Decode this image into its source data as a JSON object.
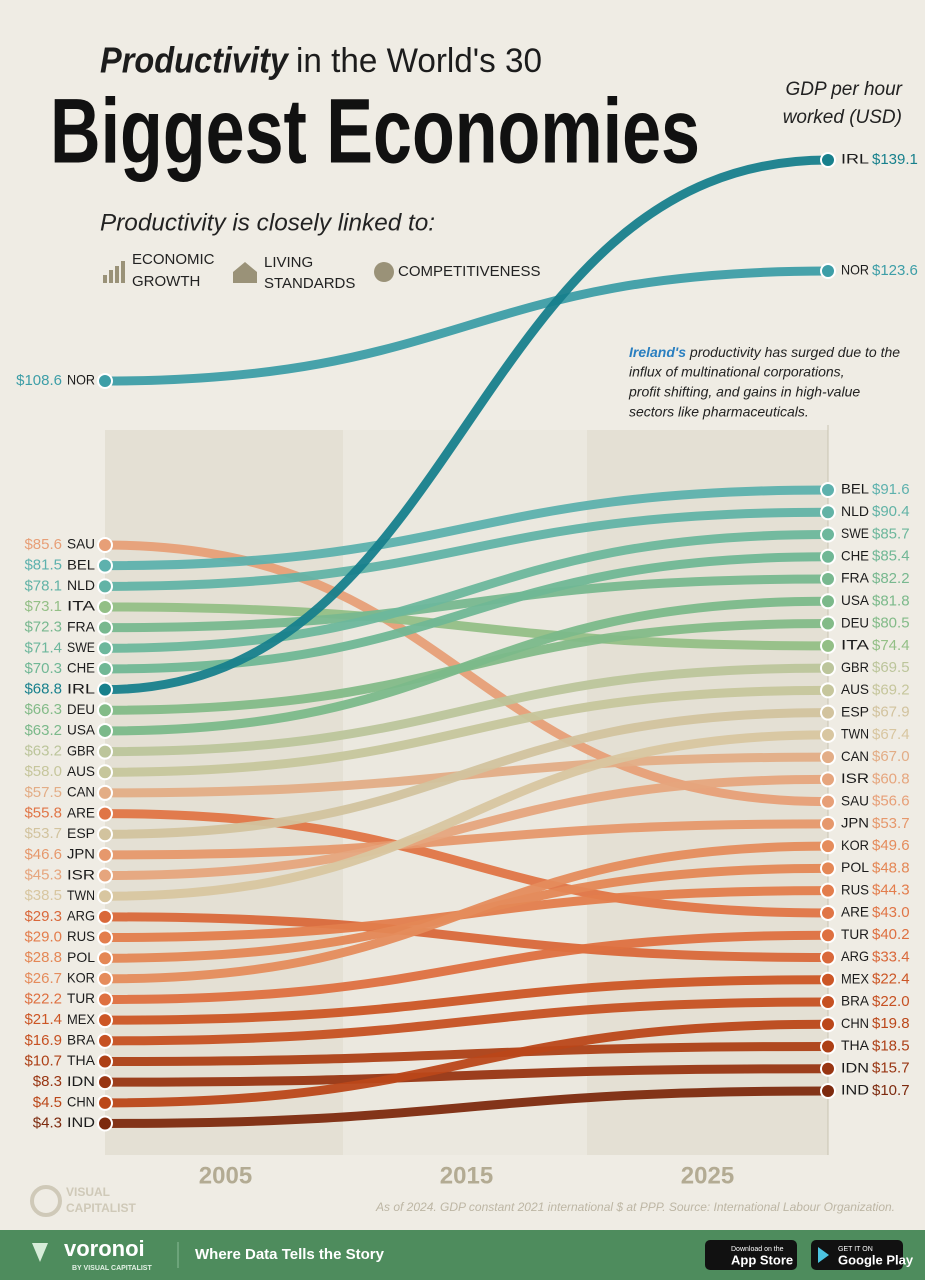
{
  "chart_data": {
    "type": "slope",
    "title_lead": "Productivity",
    "title_rest": "in the World's 30",
    "title": "Biggest Economies",
    "subtitle": "Productivity is closely linked to:",
    "themes": [
      [
        "ECONOMIC",
        "GROWTH"
      ],
      [
        "LIVING",
        "STANDARDS"
      ],
      [
        "COMPETITIVENESS"
      ]
    ],
    "y_label": [
      "GDP per hour",
      "worked (USD)"
    ],
    "annotation": [
      "Ireland's",
      "productivity has surged due to the",
      "influx of multinational corporations,",
      "profit shifting, and gains in high-value",
      "sectors like pharmaceuticals."
    ],
    "note": "As of 2024. GDP constant 2021 international $ at PPP. Source: International Labour Organization.",
    "xlim": [
      2000,
      2030
    ],
    "xticks": [
      2005,
      2015,
      2025
    ],
    "series": [
      {
        "name": "IRL",
        "color": "#17808c",
        "values": [
          68.8,
          139.1
        ],
        "value_labels": [
          "$68.8",
          "$139.1"
        ]
      },
      {
        "name": "NOR",
        "color": "#3d9ea7",
        "values": [
          108.6,
          123.6
        ],
        "value_labels": [
          "$108.6",
          "$123.6"
        ]
      },
      {
        "name": "BEL",
        "color": "#5db1ad",
        "values": [
          81.5,
          91.6
        ],
        "value_labels": [
          "$81.5",
          "$91.6"
        ]
      },
      {
        "name": "NLD",
        "color": "#62b3a6",
        "values": [
          78.1,
          90.4
        ],
        "value_labels": [
          "$78.1",
          "$90.4"
        ]
      },
      {
        "name": "SWE",
        "color": "#6db79c",
        "values": [
          71.4,
          85.7
        ],
        "value_labels": [
          "$71.4",
          "$85.7"
        ]
      },
      {
        "name": "CHE",
        "color": "#70b795",
        "values": [
          70.3,
          85.4
        ],
        "value_labels": [
          "$70.3",
          "$85.4"
        ]
      },
      {
        "name": "FRA",
        "color": "#78b88f",
        "values": [
          72.3,
          82.2
        ],
        "value_labels": [
          "$72.3",
          "$82.2"
        ]
      },
      {
        "name": "USA",
        "color": "#7bb98a",
        "values": [
          63.2,
          81.8
        ],
        "value_labels": [
          "$63.2",
          "$81.8"
        ]
      },
      {
        "name": "DEU",
        "color": "#83bb88",
        "values": [
          66.3,
          80.5
        ],
        "value_labels": [
          "$66.3",
          "$80.5"
        ]
      },
      {
        "name": "ITA",
        "color": "#93bf86",
        "values": [
          73.1,
          74.4
        ],
        "value_labels": [
          "$73.1",
          "$74.4"
        ]
      },
      {
        "name": "GBR",
        "color": "#bcc59b",
        "values": [
          63.2,
          69.5
        ],
        "value_labels": [
          "$63.2",
          "$69.5"
        ]
      },
      {
        "name": "AUS",
        "color": "#c6c69c",
        "values": [
          58.0,
          69.2
        ],
        "value_labels": [
          "$58.0",
          "$69.2"
        ]
      },
      {
        "name": "ESP",
        "color": "#d2c39e",
        "values": [
          53.7,
          67.9
        ],
        "value_labels": [
          "$53.7",
          "$67.9"
        ]
      },
      {
        "name": "TWN",
        "color": "#d8c6a0",
        "values": [
          38.5,
          67.4
        ],
        "value_labels": [
          "$38.5",
          "$67.4"
        ]
      },
      {
        "name": "CAN",
        "color": "#e3ad86",
        "values": [
          57.5,
          67.0
        ],
        "value_labels": [
          "$57.5",
          "$67.0"
        ]
      },
      {
        "name": "ISR",
        "color": "#e6a57d",
        "values": [
          45.3,
          60.8
        ],
        "value_labels": [
          "$45.3",
          "$60.8"
        ]
      },
      {
        "name": "SAU",
        "color": "#e79f77",
        "values": [
          85.6,
          56.6
        ],
        "value_labels": [
          "$85.6",
          "$56.6"
        ]
      },
      {
        "name": "JPN",
        "color": "#e6986c",
        "values": [
          46.6,
          53.7
        ],
        "value_labels": [
          "$46.6",
          "$53.7"
        ]
      },
      {
        "name": "KOR",
        "color": "#e58c5c",
        "values": [
          26.7,
          49.6
        ],
        "value_labels": [
          "$26.7",
          "$49.6"
        ]
      },
      {
        "name": "POL",
        "color": "#e48755",
        "values": [
          28.8,
          48.8
        ],
        "value_labels": [
          "$28.8",
          "$48.8"
        ]
      },
      {
        "name": "RUS",
        "color": "#e37d4c",
        "values": [
          29.0,
          44.3
        ],
        "value_labels": [
          "$29.0",
          "$44.3"
        ]
      },
      {
        "name": "ARE",
        "color": "#e07546",
        "values": [
          55.8,
          43.0
        ],
        "value_labels": [
          "$55.8",
          "$43.0"
        ]
      },
      {
        "name": "TUR",
        "color": "#de7040",
        "values": [
          22.2,
          40.2
        ],
        "value_labels": [
          "$22.2",
          "$40.2"
        ]
      },
      {
        "name": "ARG",
        "color": "#d9683a",
        "values": [
          29.3,
          33.4
        ],
        "value_labels": [
          "$29.3",
          "$33.4"
        ]
      },
      {
        "name": "MEX",
        "color": "#cc5625",
        "values": [
          21.4,
          22.4
        ],
        "value_labels": [
          "$21.4",
          "$22.4"
        ]
      },
      {
        "name": "BRA",
        "color": "#c65122",
        "values": [
          16.9,
          22.0
        ],
        "value_labels": [
          "$16.9",
          "$22.0"
        ]
      },
      {
        "name": "CHN",
        "color": "#bb4719",
        "values": [
          4.5,
          19.8
        ],
        "value_labels": [
          "$4.5",
          "$19.8"
        ]
      },
      {
        "name": "THA",
        "color": "#ad4016",
        "values": [
          10.7,
          18.5
        ],
        "value_labels": [
          "$10.7",
          "$18.5"
        ]
      },
      {
        "name": "IDN",
        "color": "#983512",
        "values": [
          8.3,
          15.7
        ],
        "value_labels": [
          "$8.3",
          "$15.7"
        ]
      },
      {
        "name": "IND",
        "color": "#7d2a0e",
        "values": [
          4.3,
          10.7
        ],
        "value_labels": [
          "$4.3",
          "$10.7"
        ]
      }
    ]
  },
  "brand": {
    "watermark": [
      "VISUAL",
      "CAPITALIST"
    ],
    "logo": "voronoi",
    "byline": "BY VISUAL CAPITALIST",
    "tagline": "Where Data Tells the Story",
    "app_store": [
      "Download on the",
      "App Store"
    ],
    "google_play": [
      "GET IT ON",
      "Google Play"
    ]
  }
}
